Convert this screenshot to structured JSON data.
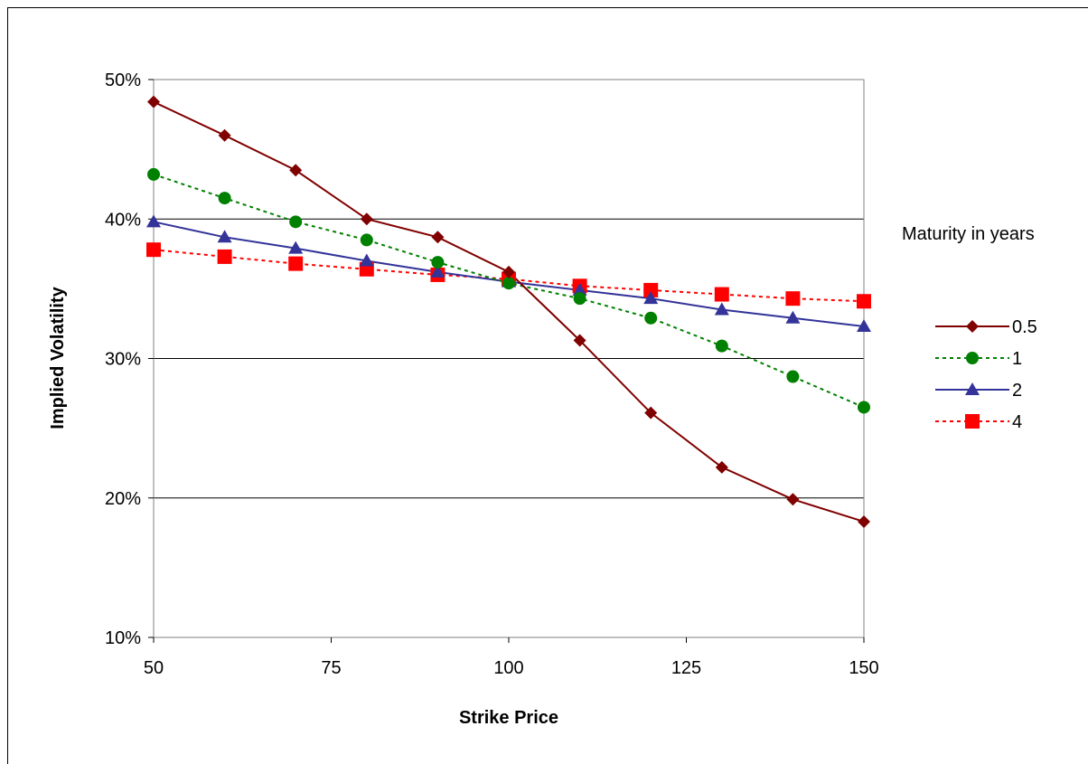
{
  "chart_data": {
    "type": "line",
    "xlabel": "Strike Price",
    "ylabel": "Implied Volatility",
    "xlim": [
      50,
      150
    ],
    "ylim": [
      0.1,
      0.5
    ],
    "x_ticks": [
      50,
      75,
      100,
      125,
      150
    ],
    "x_tick_labels": [
      "50",
      "75",
      "100",
      "125",
      "150"
    ],
    "y_ticks": [
      0.1,
      0.2,
      0.3,
      0.4,
      0.5
    ],
    "y_tick_labels": [
      "10%",
      "20%",
      "30%",
      "40%",
      "50%"
    ],
    "grid": "horizontal",
    "legend_title": "Maturity in years",
    "legend_placement": "right",
    "x": [
      50,
      60,
      70,
      80,
      90,
      100,
      110,
      120,
      130,
      140,
      150
    ],
    "series": [
      {
        "name": "0.5",
        "color": "#800000",
        "marker": "diamond",
        "dash": "solid",
        "values": [
          0.484,
          0.46,
          0.435,
          0.4,
          0.387,
          0.362,
          0.313,
          0.261,
          0.222,
          0.199,
          0.183
        ]
      },
      {
        "name": "1",
        "color": "#008000",
        "marker": "circle",
        "dash": "dotted",
        "values": [
          0.432,
          0.415,
          0.398,
          0.385,
          0.369,
          0.354,
          0.343,
          0.329,
          0.309,
          0.287,
          0.265
        ]
      },
      {
        "name": "2",
        "color": "#333399",
        "marker": "triangle",
        "dash": "solid",
        "values": [
          0.398,
          0.387,
          0.379,
          0.37,
          0.362,
          0.355,
          0.349,
          0.343,
          0.335,
          0.329,
          0.323
        ]
      },
      {
        "name": "4",
        "color": "#ff0000",
        "marker": "square",
        "dash": "dotted",
        "values": [
          0.378,
          0.373,
          0.368,
          0.364,
          0.36,
          0.357,
          0.352,
          0.349,
          0.346,
          0.343,
          0.341
        ]
      }
    ]
  }
}
